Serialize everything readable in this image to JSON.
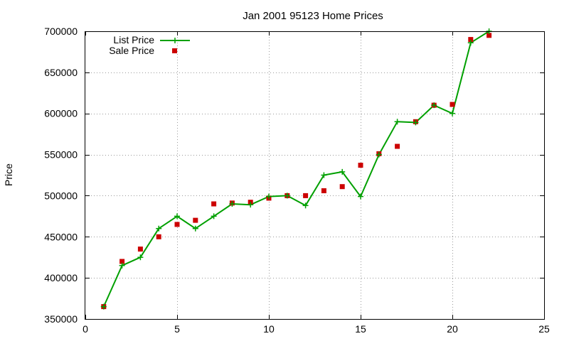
{
  "chart_data": {
    "type": "line",
    "title": "Jan 2001 95123 Home Prices",
    "xlabel": "",
    "ylabel": "Price",
    "xlim": [
      0,
      25
    ],
    "ylim": [
      350000,
      700000
    ],
    "xticks": [
      0,
      5,
      10,
      15,
      20,
      25
    ],
    "yticks": [
      350000,
      400000,
      450000,
      500000,
      550000,
      600000,
      650000,
      700000
    ],
    "grid": true,
    "legend_position": "top-left",
    "series": [
      {
        "name": "List Price",
        "style": "line+cross",
        "color": "#00a000",
        "x": [
          1,
          2,
          3,
          4,
          5,
          6,
          7,
          8,
          9,
          10,
          11,
          12,
          13,
          14,
          15,
          16,
          17,
          18,
          19,
          20,
          21,
          22
        ],
        "y": [
          365000,
          415000,
          425000,
          460000,
          475000,
          460000,
          475000,
          490000,
          489000,
          499000,
          500000,
          488000,
          525000,
          529000,
          499000,
          550000,
          590000,
          589000,
          610000,
          600000,
          686000,
          700000
        ]
      },
      {
        "name": "Sale Price",
        "style": "square-points",
        "color": "#cc0000",
        "x": [
          1,
          2,
          3,
          4,
          5,
          6,
          7,
          8,
          9,
          10,
          11,
          12,
          13,
          14,
          15,
          16,
          17,
          18,
          19,
          20,
          21,
          22
        ],
        "y": [
          365000,
          420000,
          435000,
          450000,
          465000,
          470000,
          490000,
          491000,
          492000,
          497000,
          500000,
          500000,
          506000,
          511000,
          537000,
          551000,
          560000,
          590000,
          610000,
          611000,
          690000,
          695000
        ]
      }
    ]
  }
}
